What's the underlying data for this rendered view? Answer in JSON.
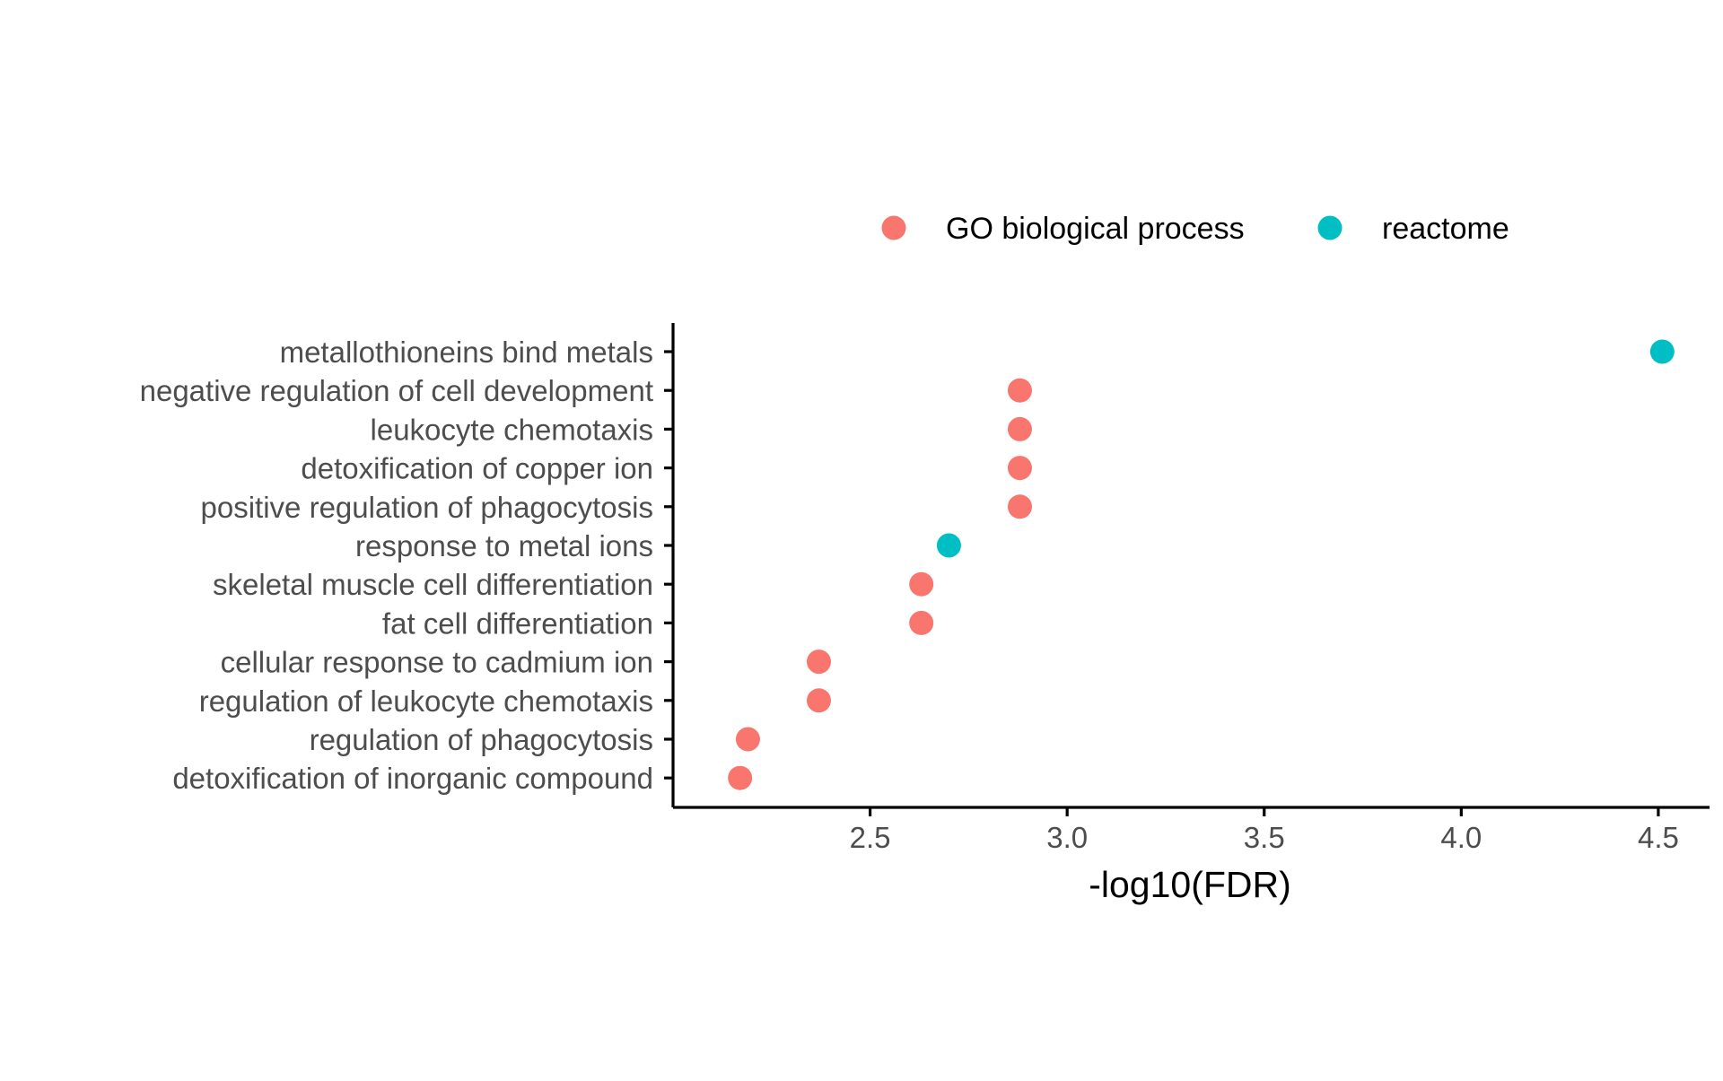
{
  "chart_data": {
    "type": "scatter",
    "title": "",
    "xlabel": "-log10(FDR)",
    "ylabel": "",
    "xlim": [
      2.0,
      4.63
    ],
    "x_ticks": [
      2.5,
      3.0,
      3.5,
      4.0,
      4.5
    ],
    "x_tick_labels": [
      "2.5",
      "3.0",
      "3.5",
      "4.0",
      "4.5"
    ],
    "categories": [
      "metallothioneins bind metals",
      "negative regulation of cell development",
      "leukocyte chemotaxis",
      "detoxification of copper ion",
      "positive regulation of phagocytosis",
      "response to metal ions",
      "skeletal muscle cell differentiation",
      "fat cell differentiation",
      "cellular response to cadmium ion",
      "regulation of leukocyte chemotaxis",
      "regulation of phagocytosis",
      "detoxification of inorganic compound"
    ],
    "series": [
      {
        "name": "GO biological process",
        "color": "#F8766D",
        "points": [
          {
            "category": "negative regulation of cell development",
            "x": 2.88
          },
          {
            "category": "leukocyte chemotaxis",
            "x": 2.88
          },
          {
            "category": "detoxification of copper ion",
            "x": 2.88
          },
          {
            "category": "positive regulation of phagocytosis",
            "x": 2.88
          },
          {
            "category": "skeletal muscle cell differentiation",
            "x": 2.63
          },
          {
            "category": "fat cell differentiation",
            "x": 2.63
          },
          {
            "category": "cellular response to cadmium ion",
            "x": 2.37
          },
          {
            "category": "regulation of leukocyte chemotaxis",
            "x": 2.37
          },
          {
            "category": "regulation of phagocytosis",
            "x": 2.19
          },
          {
            "category": "detoxification of inorganic compound",
            "x": 2.17
          }
        ]
      },
      {
        "name": "reactome",
        "color": "#00BFC4",
        "points": [
          {
            "category": "metallothioneins bind metals",
            "x": 4.51
          },
          {
            "category": "response to metal ions",
            "x": 2.7
          }
        ]
      }
    ],
    "legend_position": "top",
    "grid": false
  }
}
